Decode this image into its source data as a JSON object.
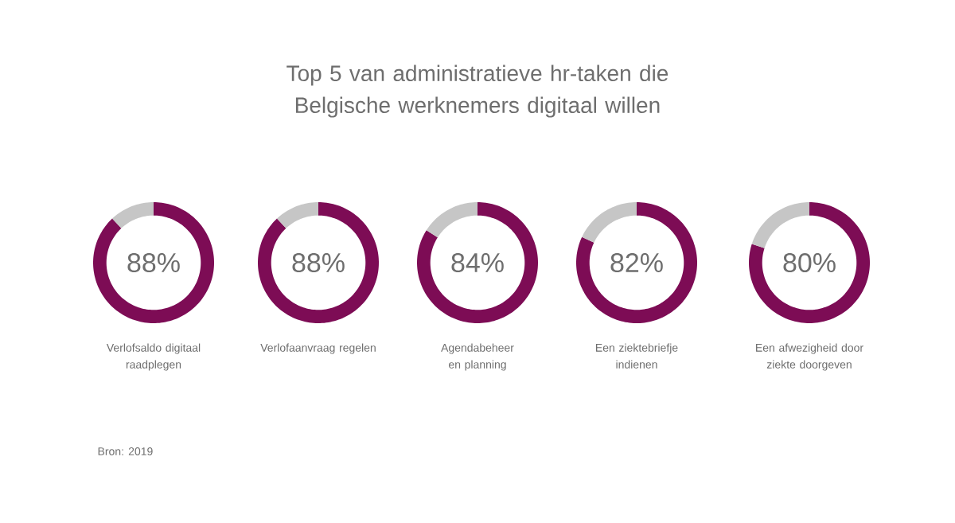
{
  "chart_data": [
    {
      "type": "other",
      "title": "Top 5 van administratieve hr-taken die Belgische werknemers digitaal willen",
      "annotations": [
        "Bron: 2019"
      ]
    },
    {
      "type": "donut",
      "categories": [
        "Verlofsaldo digitaal raadplegen",
        null
      ],
      "values": [
        88,
        12
      ],
      "colors": [
        "#7d0c55",
        "#c6c6c6"
      ],
      "value_labels": [
        "88%",
        null
      ]
    },
    {
      "type": "donut",
      "categories": [
        "Verlofaanvraag regelen",
        null
      ],
      "values": [
        88,
        12
      ],
      "colors": [
        "#7d0c55",
        "#c6c6c6"
      ],
      "value_labels": [
        "88%",
        null
      ]
    },
    {
      "type": "donut",
      "categories": [
        "Agendabeheer en planning",
        null
      ],
      "values": [
        84,
        16
      ],
      "colors": [
        "#7d0c55",
        "#c6c6c6"
      ],
      "value_labels": [
        "84%",
        null
      ]
    },
    {
      "type": "donut",
      "categories": [
        "Een ziektebriefje indienen",
        null
      ],
      "values": [
        82,
        18
      ],
      "colors": [
        "#7d0c55",
        "#c6c6c6"
      ],
      "value_labels": [
        "82%",
        null
      ]
    },
    {
      "type": "donut",
      "categories": [
        "Een afwezigheid door ziekte doorgeven",
        null
      ],
      "values": [
        80,
        20
      ],
      "colors": [
        "#7d0c55",
        "#c6c6c6"
      ],
      "value_labels": [
        "80%",
        null
      ]
    }
  ]
}
